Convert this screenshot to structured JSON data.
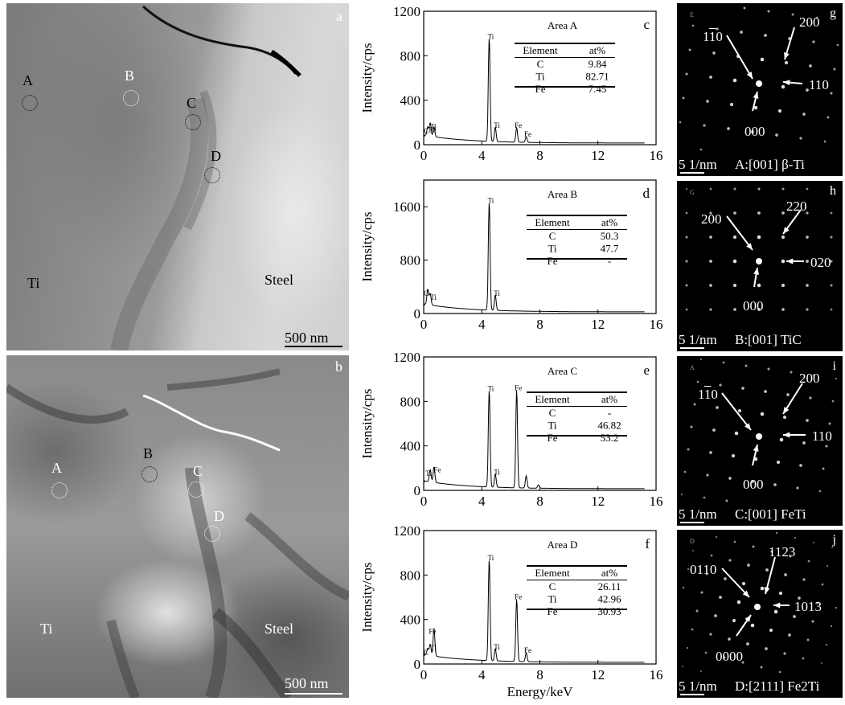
{
  "tem_a": {
    "letter": "a",
    "regions": [
      "Ti",
      "Steel"
    ],
    "areas": [
      "A",
      "B",
      "C",
      "D"
    ],
    "scale_bar": "500 nm"
  },
  "tem_b": {
    "letter": "b",
    "regions": [
      "Ti",
      "Steel"
    ],
    "areas": [
      "A",
      "B",
      "C",
      "D"
    ],
    "scale_bar": "500 nm"
  },
  "chart_data": [
    {
      "type": "line",
      "letter": "c",
      "title": "Area A",
      "xlabel": "",
      "ylabel": "Intensity/cps",
      "xlim": [
        0,
        16
      ],
      "ylim": [
        0,
        1200
      ],
      "xticks": [
        0,
        4,
        8,
        12,
        16
      ],
      "yticks": [
        0,
        400,
        800,
        1200
      ],
      "peaks": [
        {
          "x": 0.28,
          "y": 80,
          "label": "C"
        },
        {
          "x": 0.45,
          "y": 120,
          "label": "Ti"
        },
        {
          "x": 0.71,
          "y": 90,
          "label": "Fe"
        },
        {
          "x": 4.51,
          "y": 930,
          "label": "Ti"
        },
        {
          "x": 4.93,
          "y": 130,
          "label": "Ti"
        },
        {
          "x": 6.4,
          "y": 130,
          "label": "Fe"
        },
        {
          "x": 7.06,
          "y": 50,
          "label": "Fe"
        }
      ],
      "table": {
        "headers": [
          "Element",
          "at%"
        ],
        "rows": [
          [
            "C",
            "9.84"
          ],
          [
            "Ti",
            "82.71"
          ],
          [
            "Fe",
            "7.45"
          ]
        ]
      }
    },
    {
      "type": "line",
      "letter": "d",
      "title": "Area B",
      "xlabel": "",
      "ylabel": "Intensity/cps",
      "xlim": [
        0,
        16
      ],
      "ylim": [
        0,
        2000
      ],
      "xticks": [
        0,
        4,
        8,
        12,
        16
      ],
      "yticks": [
        0,
        800,
        1600
      ],
      "peaks": [
        {
          "x": 0.28,
          "y": 230,
          "label": "C"
        },
        {
          "x": 0.45,
          "y": 170,
          "label": "Ti"
        },
        {
          "x": 4.51,
          "y": 1620,
          "label": "Ti"
        },
        {
          "x": 4.93,
          "y": 230,
          "label": "Ti"
        }
      ],
      "table": {
        "headers": [
          "Element",
          "at%"
        ],
        "rows": [
          [
            "C",
            "50.3"
          ],
          [
            "Ti",
            "47.7"
          ],
          [
            "Fe",
            "-"
          ]
        ]
      }
    },
    {
      "type": "line",
      "letter": "e",
      "title": "Area C",
      "xlabel": "",
      "ylabel": "Intensity/cps",
      "xlim": [
        0,
        16
      ],
      "ylim": [
        0,
        1200
      ],
      "xticks": [
        0,
        4,
        8,
        12,
        16
      ],
      "yticks": [
        0,
        400,
        800,
        1200
      ],
      "peaks": [
        {
          "x": 0.45,
          "y": 110,
          "label": "Ti"
        },
        {
          "x": 0.71,
          "y": 140,
          "label": "Fe"
        },
        {
          "x": 4.51,
          "y": 870,
          "label": "Ti"
        },
        {
          "x": 4.93,
          "y": 120,
          "label": "Ti"
        },
        {
          "x": 6.4,
          "y": 880,
          "label": "Fe"
        },
        {
          "x": 7.06,
          "y": 110,
          "label": ""
        },
        {
          "x": 7.9,
          "y": 30,
          "label": ""
        }
      ],
      "table": {
        "headers": [
          "Element",
          "at%"
        ],
        "rows": [
          [
            "C",
            "-"
          ],
          [
            "Ti",
            "46.82"
          ],
          [
            "Fe",
            "53.2"
          ]
        ]
      }
    },
    {
      "type": "line",
      "letter": "f",
      "title": "Area D",
      "xlabel": "Energy/keV",
      "ylabel": "Intensity/cps",
      "xlim": [
        0,
        16
      ],
      "ylim": [
        0,
        1200
      ],
      "xticks": [
        0,
        4,
        8,
        12,
        16
      ],
      "yticks": [
        0,
        400,
        800,
        1200
      ],
      "peaks": [
        {
          "x": 0.28,
          "y": 60,
          "label": "C"
        },
        {
          "x": 0.45,
          "y": 100,
          "label": "Ti"
        },
        {
          "x": 0.71,
          "y": 250,
          "label": "Fe"
        },
        {
          "x": 4.51,
          "y": 910,
          "label": "Ti"
        },
        {
          "x": 4.93,
          "y": 110,
          "label": "Ti"
        },
        {
          "x": 6.4,
          "y": 560,
          "label": "Fe"
        },
        {
          "x": 7.06,
          "y": 80,
          "label": "Fe"
        }
      ],
      "table": {
        "headers": [
          "Element",
          "at%"
        ],
        "rows": [
          [
            "C",
            "26.11"
          ],
          [
            "Ti",
            "42.96"
          ],
          [
            "Fe",
            "30.93"
          ]
        ]
      }
    }
  ],
  "saed": [
    {
      "letter": "g",
      "corner_tag": "E",
      "scale": "5 1/nm",
      "caption": "A:[001] β-Ti",
      "labels": [
        "110",
        "200",
        "110",
        "000"
      ],
      "overbar_index": 0
    },
    {
      "letter": "h",
      "corner_tag": "G",
      "scale": "5 1/nm",
      "caption": "B:[001] TiC",
      "labels": [
        "200",
        "220",
        "020",
        "000"
      ],
      "overbar_index": -1
    },
    {
      "letter": "i",
      "corner_tag": "A",
      "scale": "5 1/nm",
      "caption": "C:[001] FeTi",
      "labels": [
        "110",
        "200",
        "110",
        "000"
      ],
      "overbar_index": 0
    },
    {
      "letter": "j",
      "corner_tag": "D",
      "scale": "5 1/nm",
      "caption": "D:[2111] Fe2Ti",
      "labels": [
        "0110",
        "1123",
        "1013",
        "0000"
      ],
      "overbar_index": -1
    }
  ]
}
